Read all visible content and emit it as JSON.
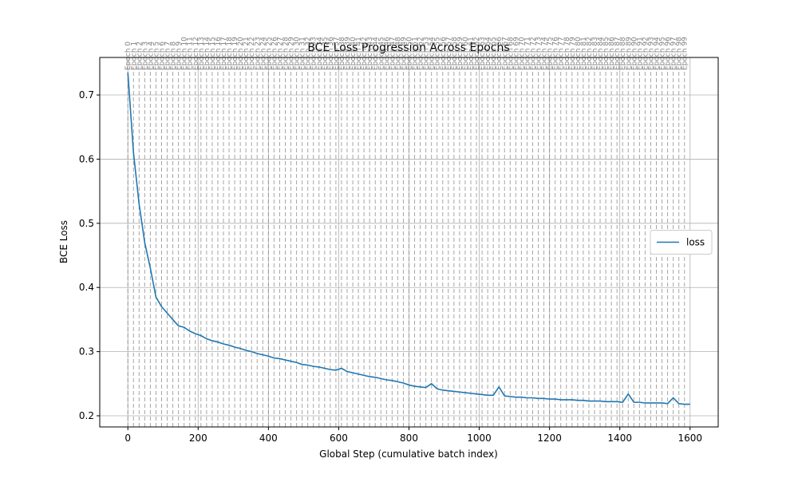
{
  "chart_data": {
    "type": "line",
    "title": "BCE Loss Progression Across Epochs",
    "x_label": "Global Step (cumulative batch index)",
    "y_label": "BCE Loss",
    "x": [
      0,
      16,
      32,
      48,
      64,
      80,
      96,
      112,
      128,
      144,
      160,
      176,
      192,
      208,
      224,
      240,
      256,
      272,
      288,
      304,
      320,
      336,
      352,
      368,
      384,
      400,
      416,
      432,
      448,
      464,
      480,
      496,
      512,
      528,
      544,
      560,
      576,
      592,
      608,
      624,
      640,
      656,
      672,
      688,
      704,
      720,
      736,
      752,
      768,
      784,
      800,
      816,
      832,
      848,
      864,
      880,
      896,
      912,
      928,
      944,
      960,
      976,
      992,
      1008,
      1024,
      1040,
      1056,
      1072,
      1088,
      1104,
      1120,
      1136,
      1152,
      1168,
      1184,
      1200,
      1216,
      1232,
      1248,
      1264,
      1280,
      1296,
      1312,
      1328,
      1344,
      1360,
      1376,
      1392,
      1408,
      1424,
      1440,
      1456,
      1472,
      1488,
      1504,
      1520,
      1536,
      1552,
      1568,
      1584,
      1600
    ],
    "series": [
      {
        "name": "loss",
        "color": "#1f77b4",
        "values": [
          0.735,
          0.61,
          0.53,
          0.47,
          0.43,
          0.385,
          0.37,
          0.36,
          0.35,
          0.34,
          0.338,
          0.332,
          0.328,
          0.325,
          0.32,
          0.317,
          0.315,
          0.312,
          0.31,
          0.307,
          0.305,
          0.302,
          0.3,
          0.297,
          0.295,
          0.293,
          0.29,
          0.289,
          0.287,
          0.285,
          0.283,
          0.28,
          0.279,
          0.277,
          0.276,
          0.274,
          0.272,
          0.271,
          0.274,
          0.269,
          0.267,
          0.265,
          0.263,
          0.261,
          0.26,
          0.258,
          0.256,
          0.255,
          0.253,
          0.251,
          0.248,
          0.246,
          0.245,
          0.244,
          0.25,
          0.242,
          0.24,
          0.239,
          0.238,
          0.237,
          0.236,
          0.235,
          0.234,
          0.233,
          0.232,
          0.232,
          0.245,
          0.231,
          0.23,
          0.229,
          0.229,
          0.228,
          0.228,
          0.227,
          0.227,
          0.226,
          0.226,
          0.225,
          0.225,
          0.225,
          0.224,
          0.224,
          0.223,
          0.223,
          0.223,
          0.222,
          0.222,
          0.222,
          0.221,
          0.234,
          0.221,
          0.221,
          0.22,
          0.22,
          0.22,
          0.22,
          0.219,
          0.228,
          0.219,
          0.218,
          0.218
        ]
      }
    ],
    "epoch_lines": {
      "x": [
        0,
        16,
        32,
        48,
        64,
        80,
        96,
        112,
        128,
        144,
        160,
        176,
        192,
        208,
        224,
        240,
        256,
        272,
        288,
        304,
        320,
        336,
        352,
        368,
        384,
        400,
        416,
        432,
        448,
        464,
        480,
        496,
        512,
        528,
        544,
        560,
        576,
        592,
        608,
        624,
        640,
        656,
        672,
        688,
        704,
        720,
        736,
        752,
        768,
        784,
        800,
        816,
        832,
        848,
        864,
        880,
        896,
        912,
        928,
        944,
        960,
        976,
        992,
        1008,
        1024,
        1040,
        1056,
        1072,
        1088,
        1104,
        1120,
        1136,
        1152,
        1168,
        1184,
        1200,
        1216,
        1232,
        1248,
        1264,
        1280,
        1296,
        1312,
        1328,
        1344,
        1360,
        1376,
        1392,
        1408,
        1424,
        1440,
        1456,
        1472,
        1488,
        1504,
        1520,
        1536,
        1552,
        1568,
        1584
      ],
      "labels": [
        "Epoch 0",
        "Epoch 1",
        "Epoch 2",
        "Epoch 3",
        "Epoch 4",
        "Epoch 5",
        "Epoch 6",
        "Epoch 7",
        "Epoch 8",
        "Epoch 9",
        "Epoch 10",
        "Epoch 11",
        "Epoch 12",
        "Epoch 13",
        "Epoch 14",
        "Epoch 15",
        "Epoch 16",
        "Epoch 17",
        "Epoch 18",
        "Epoch 19",
        "Epoch 20",
        "Epoch 21",
        "Epoch 22",
        "Epoch 23",
        "Epoch 24",
        "Epoch 25",
        "Epoch 26",
        "Epoch 27",
        "Epoch 28",
        "Epoch 29",
        "Epoch 30",
        "Epoch 31",
        "Epoch 32",
        "Epoch 33",
        "Epoch 34",
        "Epoch 35",
        "Epoch 36",
        "Epoch 37",
        "Epoch 38",
        "Epoch 39",
        "Epoch 40",
        "Epoch 41",
        "Epoch 42",
        "Epoch 43",
        "Epoch 44",
        "Epoch 45",
        "Epoch 46",
        "Epoch 47",
        "Epoch 48",
        "Epoch 49",
        "Epoch 50",
        "Epoch 51",
        "Epoch 52",
        "Epoch 53",
        "Epoch 54",
        "Epoch 55",
        "Epoch 56",
        "Epoch 57",
        "Epoch 58",
        "Epoch 59",
        "Epoch 60",
        "Epoch 61",
        "Epoch 62",
        "Epoch 63",
        "Epoch 64",
        "Epoch 65",
        "Epoch 66",
        "Epoch 67",
        "Epoch 68",
        "Epoch 69",
        "Epoch 70",
        "Epoch 71",
        "Epoch 72",
        "Epoch 73",
        "Epoch 74",
        "Epoch 75",
        "Epoch 76",
        "Epoch 77",
        "Epoch 78",
        "Epoch 79",
        "Epoch 80",
        "Epoch 81",
        "Epoch 82",
        "Epoch 83",
        "Epoch 84",
        "Epoch 85",
        "Epoch 86",
        "Epoch 87",
        "Epoch 88",
        "Epoch 89",
        "Epoch 90",
        "Epoch 91",
        "Epoch 92",
        "Epoch 93",
        "Epoch 94",
        "Epoch 95",
        "Epoch 96",
        "Epoch 97",
        "Epoch 98",
        "Epoch 99"
      ]
    },
    "xlim": [
      -80,
      1680
    ],
    "ylim": [
      0.1826,
      0.7585
    ],
    "xticks": [
      0,
      200,
      400,
      600,
      800,
      1000,
      1200,
      1400,
      1600
    ],
    "yticks": [
      0.2,
      0.3,
      0.4,
      0.5,
      0.6,
      0.7
    ],
    "grid": true,
    "legend": "center right"
  }
}
